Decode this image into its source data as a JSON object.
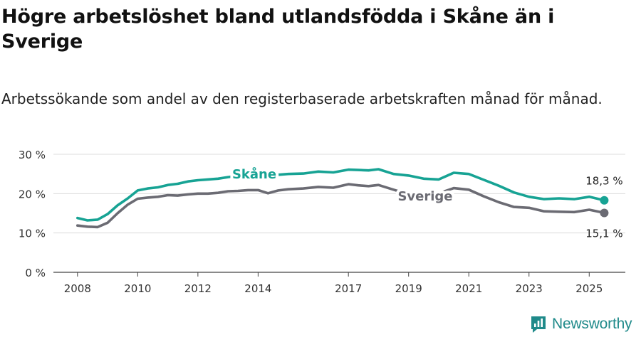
{
  "title": "Högre arbetslöshet bland utlandsfödda i Skåne än i Sverige",
  "subtitle": "Arbetssökande som andel av den registerbaserade arbetskraften månad för månad.",
  "brand": {
    "name": "Newsworthy",
    "icon": "newsworthy-logo-icon",
    "color": "#1f8a8a"
  },
  "chart_data": {
    "type": "line",
    "title": "Högre arbetslöshet bland utlandsfödda i Skåne än i Sverige",
    "subtitle": "Arbetssökande som andel av den registerbaserade arbetskraften månad för månad.",
    "xlabel": "",
    "ylabel": "",
    "xlim": [
      2007.2,
      2026.2
    ],
    "ylim": [
      0,
      30
    ],
    "yticks": [
      0,
      10,
      20,
      30
    ],
    "ytick_labels": [
      "0 %",
      "10 %",
      "20 %",
      "30 %"
    ],
    "xticks": [
      2008,
      2010,
      2012,
      2014,
      2017,
      2019,
      2021,
      2023,
      2025
    ],
    "xtick_labels": [
      "2008",
      "2010",
      "2012",
      "2014",
      "2017",
      "2019",
      "2021",
      "2023",
      "2025"
    ],
    "grid": true,
    "legend": "direct labels on lines",
    "series": [
      {
        "name": "Skåne",
        "color": "#17a394",
        "end_label": "18,3 %",
        "x": [
          2008.0,
          2008.33,
          2008.67,
          2009.0,
          2009.33,
          2009.67,
          2010.0,
          2010.33,
          2010.67,
          2011.0,
          2011.33,
          2011.67,
          2012.0,
          2012.33,
          2012.67,
          2013.0,
          2013.33,
          2013.67,
          2014.0,
          2014.33,
          2014.67,
          2015.0,
          2015.5,
          2016.0,
          2016.5,
          2017.0,
          2017.33,
          2017.67,
          2018.0,
          2018.5,
          2019.0,
          2019.5,
          2020.0,
          2020.5,
          2021.0,
          2021.5,
          2022.0,
          2022.5,
          2023.0,
          2023.5,
          2024.0,
          2024.5,
          2025.0,
          2025.5
        ],
        "y": [
          13.8,
          13.2,
          13.4,
          14.8,
          17.0,
          18.8,
          20.8,
          21.3,
          21.6,
          22.2,
          22.5,
          23.1,
          23.4,
          23.6,
          23.8,
          24.2,
          24.5,
          24.6,
          24.6,
          24.5,
          24.8,
          25.0,
          25.1,
          25.6,
          25.4,
          26.1,
          26.0,
          25.9,
          26.2,
          25.0,
          24.6,
          23.8,
          23.6,
          25.3,
          25.0,
          23.5,
          22.0,
          20.3,
          19.2,
          18.6,
          18.8,
          18.6,
          19.2,
          18.3
        ]
      },
      {
        "name": "Sverige",
        "color": "#6b6b73",
        "end_label": "15,1 %",
        "x": [
          2008.0,
          2008.33,
          2008.67,
          2009.0,
          2009.33,
          2009.67,
          2010.0,
          2010.33,
          2010.67,
          2011.0,
          2011.33,
          2011.67,
          2012.0,
          2012.33,
          2012.67,
          2013.0,
          2013.33,
          2013.67,
          2014.0,
          2014.33,
          2014.67,
          2015.0,
          2015.5,
          2016.0,
          2016.5,
          2017.0,
          2017.33,
          2017.67,
          2018.0,
          2018.5,
          2019.0,
          2019.5,
          2020.0,
          2020.5,
          2021.0,
          2021.5,
          2022.0,
          2022.5,
          2023.0,
          2023.5,
          2024.0,
          2024.5,
          2025.0,
          2025.5
        ],
        "y": [
          11.9,
          11.6,
          11.5,
          12.6,
          15.0,
          17.2,
          18.7,
          19.0,
          19.2,
          19.6,
          19.5,
          19.8,
          20.0,
          20.0,
          20.2,
          20.6,
          20.7,
          20.9,
          20.9,
          20.1,
          20.8,
          21.1,
          21.3,
          21.7,
          21.5,
          22.4,
          22.1,
          21.9,
          22.2,
          21.0,
          19.8,
          19.4,
          20.1,
          21.4,
          21.0,
          19.3,
          17.8,
          16.6,
          16.4,
          15.5,
          15.4,
          15.3,
          15.9,
          15.1
        ]
      }
    ]
  }
}
